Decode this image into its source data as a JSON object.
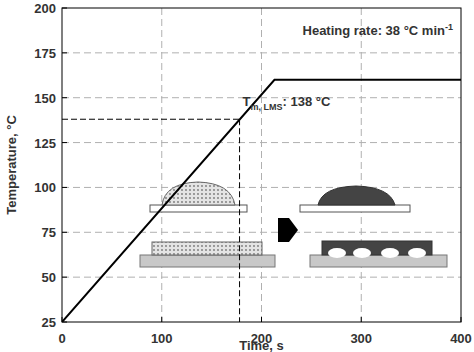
{
  "chart_data": {
    "type": "line",
    "xlabel": "Time, s",
    "ylabel": "Temperature, °C",
    "x": [
      0,
      213,
      400
    ],
    "values": [
      25,
      160,
      160
    ],
    "color": "#000000",
    "xlim": [
      0,
      400
    ],
    "xticks": [
      0,
      100,
      200,
      300,
      400
    ],
    "ylim": [
      25,
      200
    ],
    "yticks": [
      25,
      50,
      75,
      100,
      125,
      150,
      175,
      200
    ],
    "grid": true,
    "annotations": [
      {
        "text": "Heating rate: 38 °C min",
        "superscript": "-1"
      },
      {
        "text": "T",
        "subscript": "m, LMS",
        "suffix": ": 138 °C",
        "x": 178,
        "y": 138
      }
    ]
  }
}
